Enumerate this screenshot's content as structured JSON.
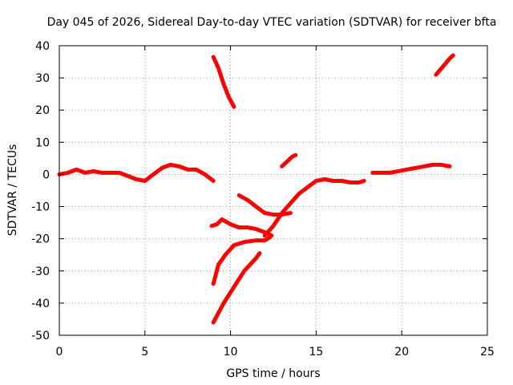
{
  "chart_data": {
    "type": "line",
    "title": "Day 045 of 2026, Sidereal Day-to-day VTEC variation (SDTVAR) for receiver bfta",
    "xlabel": "GPS time / hours",
    "ylabel": "SDTVAR / TECUs",
    "xlim": [
      0,
      25
    ],
    "ylim": [
      -50,
      40
    ],
    "xticks": [
      0,
      5,
      10,
      15,
      20,
      25
    ],
    "yticks": [
      -50,
      -40,
      -30,
      -20,
      -10,
      0,
      10,
      20,
      30,
      40
    ],
    "grid": true,
    "series_color": "#ff0000",
    "series": [
      {
        "name": "main-trace",
        "x": [
          0,
          0.5,
          1,
          1.5,
          2,
          2.5,
          3,
          3.5,
          4,
          4.5,
          5,
          5.5,
          6,
          6.5,
          7,
          7.5,
          8,
          8.5,
          9
        ],
        "y": [
          0,
          0.5,
          1.5,
          0.5,
          1,
          0.5,
          0.5,
          0.5,
          -0.5,
          -1.5,
          -2,
          0,
          2,
          3,
          2.5,
          1.5,
          1.5,
          0,
          -2
        ]
      },
      {
        "name": "steep-high",
        "x": [
          9,
          9.3,
          9.6,
          9.9,
          10.2
        ],
        "y": [
          36.5,
          33,
          28,
          24,
          21
        ]
      },
      {
        "name": "steep-low",
        "x": [
          9,
          9.6,
          10.2,
          10.8,
          11.5,
          11.7
        ],
        "y": [
          -46,
          -40,
          -35,
          -30,
          -26,
          -24.5
        ]
      },
      {
        "name": "arc-a",
        "x": [
          9,
          9.3,
          9.7,
          10.2,
          10.8,
          11.5,
          12,
          12.3
        ],
        "y": [
          -34,
          -28,
          -25,
          -22,
          -21,
          -20.5,
          -20.5,
          -19.5
        ]
      },
      {
        "name": "arc-b",
        "x": [
          8.9,
          9.2,
          9.5,
          10,
          10.5,
          11,
          11.5,
          12,
          12.4
        ],
        "y": [
          -16,
          -15.5,
          -14,
          -15.5,
          -16.5,
          -16.5,
          -17,
          -18,
          -19
        ]
      },
      {
        "name": "arc-c",
        "x": [
          10.5,
          11,
          11.5,
          12,
          12.5,
          13,
          13.5
        ],
        "y": [
          -6.5,
          -8,
          -10,
          -12,
          -12.5,
          -12.5,
          -12
        ]
      },
      {
        "name": "rise",
        "x": [
          12,
          12.5,
          13,
          13.5,
          14,
          14.5,
          15,
          15.5,
          16,
          16.5,
          17,
          17.5,
          17.8
        ],
        "y": [
          -19,
          -16,
          -12,
          -9,
          -6,
          -4,
          -2,
          -1.5,
          -2,
          -2,
          -2.5,
          -2.5,
          -2
        ]
      },
      {
        "name": "short-mid",
        "x": [
          13,
          13.3,
          13.6,
          13.8
        ],
        "y": [
          2.5,
          4,
          5.5,
          6
        ]
      },
      {
        "name": "right-trace",
        "x": [
          18.3,
          18.8,
          19.3,
          19.8,
          20.3,
          20.8,
          21.3,
          21.8,
          22.3,
          22.8
        ],
        "y": [
          0.5,
          0.5,
          0.5,
          1,
          1.5,
          2,
          2.5,
          3,
          3,
          2.5
        ]
      },
      {
        "name": "top-right",
        "x": [
          22,
          22.4,
          22.8,
          23
        ],
        "y": [
          31,
          33.5,
          36,
          37
        ]
      }
    ]
  }
}
